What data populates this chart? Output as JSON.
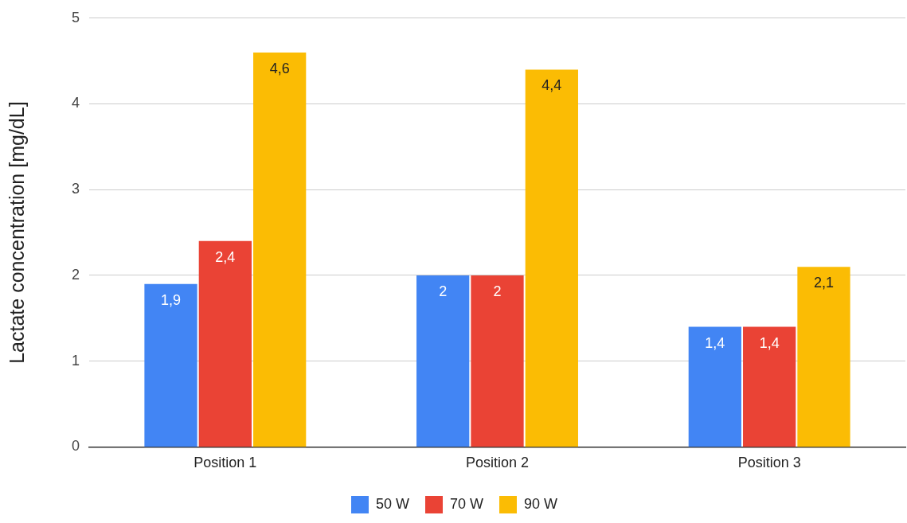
{
  "chart_data": {
    "type": "bar",
    "ylabel": "Lactate concentration [mg/dL]",
    "categories": [
      "Position 1",
      "Position 2",
      "Position 3"
    ],
    "series": [
      {
        "name": "50 W",
        "color": "#4285f4",
        "values": [
          1.9,
          2,
          1.4
        ],
        "value_labels": [
          "1,9",
          "2",
          "1,4"
        ]
      },
      {
        "name": "70 W",
        "color": "#ea4335",
        "values": [
          2.4,
          2,
          1.4
        ],
        "value_labels": [
          "2,4",
          "2",
          "1,4"
        ]
      },
      {
        "name": "90 W",
        "color": "#fbbc04",
        "values": [
          4.6,
          4.4,
          2.1
        ],
        "value_labels": [
          "4,6",
          "4,4",
          "2,1"
        ]
      }
    ],
    "ylim": [
      0,
      5
    ],
    "yticks": [
      0,
      1,
      2,
      3,
      4,
      5
    ],
    "grid": "y",
    "legend": "bottom"
  }
}
